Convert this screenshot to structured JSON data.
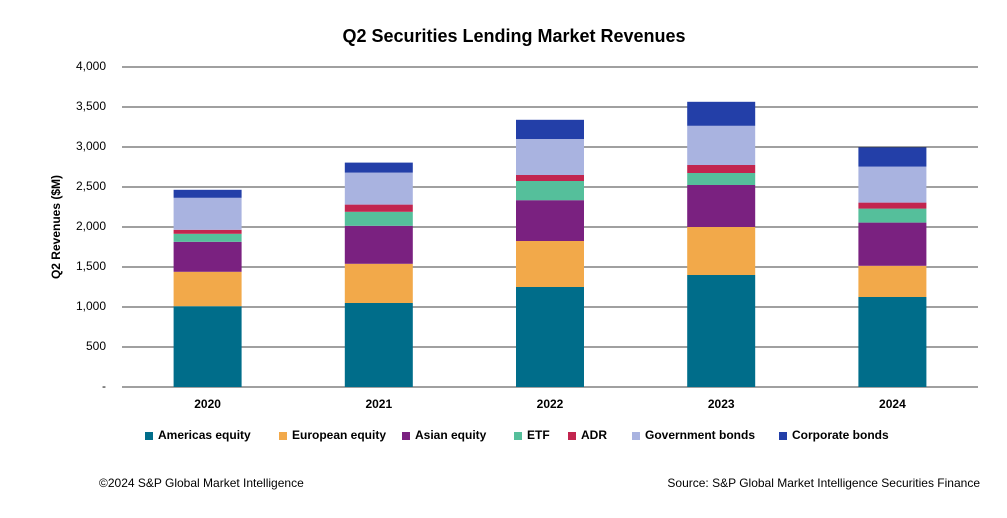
{
  "chart_data": {
    "type": "stacked_bar",
    "title": "Q2 Securities Lending Market Revenues",
    "y_label": "Q2 Revenues ($M)",
    "categories": [
      "2020",
      "2021",
      "2022",
      "2023",
      "2024"
    ],
    "series": [
      {
        "name": "Americas equity",
        "color": "#006d8a",
        "values": [
          1010,
          1050,
          1250,
          1400,
          1125
        ]
      },
      {
        "name": "European equity",
        "color": "#f2a94a",
        "values": [
          430,
          490,
          575,
          600,
          390
        ]
      },
      {
        "name": "Asian equity",
        "color": "#7a2180",
        "values": [
          375,
          475,
          510,
          525,
          540
        ]
      },
      {
        "name": "ETF",
        "color": "#55bf9b",
        "values": [
          100,
          175,
          240,
          150,
          175
        ]
      },
      {
        "name": "ADR",
        "color": "#c2254f",
        "values": [
          50,
          90,
          75,
          100,
          75
        ]
      },
      {
        "name": "Government bonds",
        "color": "#a9b3e0",
        "values": [
          400,
          400,
          450,
          490,
          450
        ]
      },
      {
        "name": "Corporate bonds",
        "color": "#233fa8",
        "values": [
          100,
          125,
          240,
          300,
          240
        ]
      }
    ],
    "ylim": [
      0,
      4000
    ],
    "yticks": [
      {
        "value": 0,
        "label": "-"
      },
      500,
      {
        "value": 1000,
        "label": "1,000"
      },
      {
        "value": 1500,
        "label": "1,500"
      },
      {
        "value": 2000,
        "label": "2,000"
      },
      {
        "value": 2500,
        "label": "2,500"
      },
      {
        "value": 3000,
        "label": "3,000"
      },
      {
        "value": 3500,
        "label": "3,500"
      },
      {
        "value": 4000,
        "label": "4,000"
      }
    ],
    "grid": true,
    "legend": "bottom",
    "copyright": "©2024 S&P Global Market Intelligence",
    "source": "Source: S&P Global Market Intelligence Securities Finance"
  }
}
